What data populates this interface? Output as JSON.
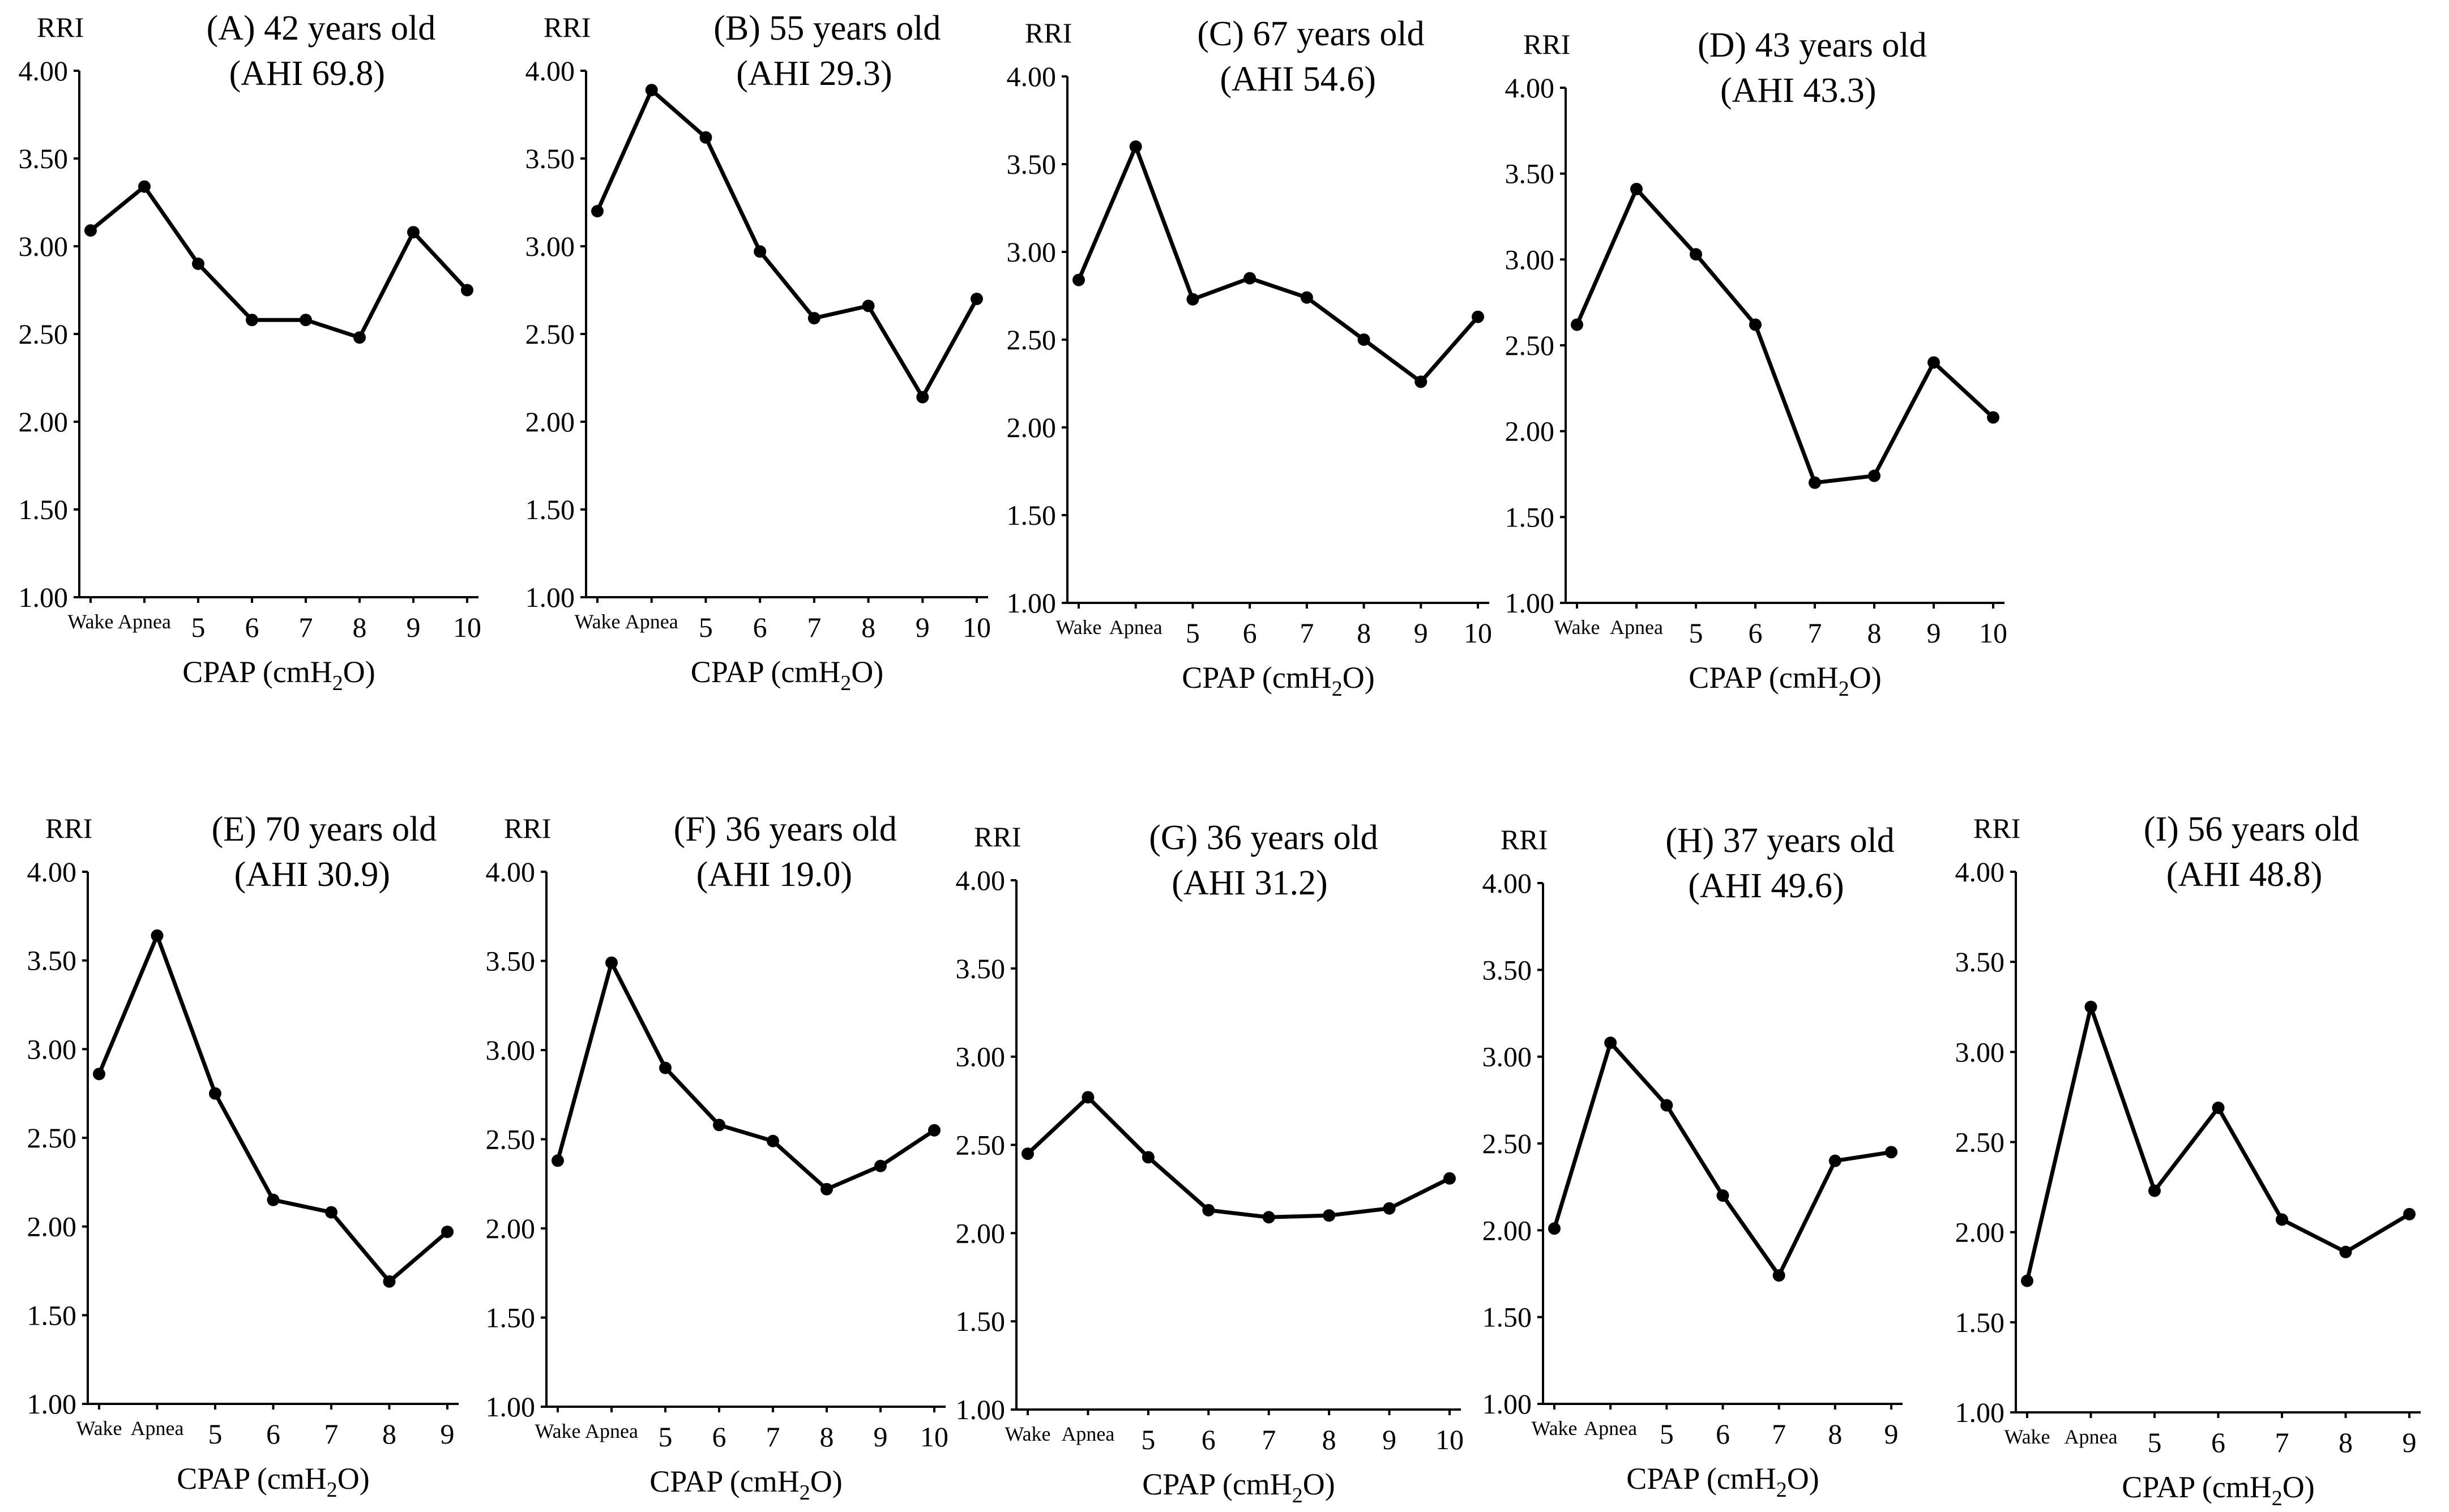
{
  "chart_data": [
    {
      "type": "line",
      "panel": "A",
      "title": "(A) 42 years old",
      "subtitle": "(AHI 69.8)",
      "ylabel": "RRI",
      "xlabel": "CPAP (cmH2O)",
      "ylim": [
        1,
        4
      ],
      "yticks": [
        "1.00",
        "1.50",
        "2.00",
        "2.50",
        "3.00",
        "3.50",
        "4.00"
      ],
      "categories": [
        "Wake",
        "Apnea",
        "5",
        "6",
        "7",
        "8",
        "9",
        "10"
      ],
      "values": [
        3.09,
        3.34,
        2.9,
        2.58,
        2.58,
        2.48,
        3.08,
        2.75
      ]
    },
    {
      "type": "line",
      "panel": "B",
      "title": "(B) 55 years old",
      "subtitle": "(AHI 29.3)",
      "ylabel": "RRI",
      "xlabel": "CPAP (cmH2O)",
      "ylim": [
        1,
        4
      ],
      "yticks": [
        "1.00",
        "1.50",
        "2.00",
        "2.50",
        "3.00",
        "3.50",
        "4.00"
      ],
      "categories": [
        "Wake",
        "Apnea",
        "5",
        "6",
        "7",
        "8",
        "9",
        "10"
      ],
      "values": [
        3.2,
        3.89,
        3.62,
        2.97,
        2.59,
        2.66,
        2.14,
        2.7
      ]
    },
    {
      "type": "line",
      "panel": "C",
      "title": "(C) 67 years old",
      "subtitle": "(AHI 54.6)",
      "ylabel": "RRI",
      "xlabel": "CPAP (cmH2O)",
      "ylim": [
        1,
        4
      ],
      "yticks": [
        "1.00",
        "1.50",
        "2.00",
        "2.50",
        "3.00",
        "3.50",
        "4.00"
      ],
      "categories": [
        "Wake",
        "Apnea",
        "5",
        "6",
        "7",
        "8",
        "9",
        "10"
      ],
      "values": [
        2.84,
        3.6,
        2.73,
        2.85,
        2.74,
        2.5,
        2.26,
        2.63
      ]
    },
    {
      "type": "line",
      "panel": "D",
      "title": "(D) 43 years old",
      "subtitle": "(AHI 43.3)",
      "ylabel": "RRI",
      "xlabel": "CPAP (cmH2O)",
      "ylim": [
        1,
        4
      ],
      "yticks": [
        "1.00",
        "1.50",
        "2.00",
        "2.50",
        "3.00",
        "3.50",
        "4.00"
      ],
      "categories": [
        "Wake",
        "Apnea",
        "5",
        "6",
        "7",
        "8",
        "9",
        "10"
      ],
      "values": [
        2.62,
        3.41,
        3.03,
        2.62,
        1.7,
        1.74,
        2.4,
        2.08
      ]
    },
    {
      "type": "line",
      "panel": "E",
      "title": "(E) 70 years old",
      "subtitle": "(AHI 30.9)",
      "ylabel": "RRI",
      "xlabel": "CPAP (cmH2O)",
      "ylim": [
        1,
        4
      ],
      "yticks": [
        "1.00",
        "1.50",
        "2.00",
        "2.50",
        "3.00",
        "3.50",
        "4.00"
      ],
      "categories": [
        "Wake",
        "Apnea",
        "5",
        "6",
        "7",
        "8",
        "9"
      ],
      "values": [
        2.86,
        3.64,
        2.75,
        2.15,
        2.08,
        1.69,
        1.97
      ]
    },
    {
      "type": "line",
      "panel": "F",
      "title": "(F) 36 years old",
      "subtitle": "(AHI 19.0)",
      "ylabel": "RRI",
      "xlabel": "CPAP (cmH2O)",
      "ylim": [
        1,
        4
      ],
      "yticks": [
        "1.00",
        "1.50",
        "2.00",
        "2.50",
        "3.00",
        "3.50",
        "4.00"
      ],
      "categories": [
        "Wake",
        "Apnea",
        "5",
        "6",
        "7",
        "8",
        "9",
        "10"
      ],
      "values": [
        2.38,
        3.49,
        2.9,
        2.58,
        2.49,
        2.22,
        2.35,
        2.55
      ]
    },
    {
      "type": "line",
      "panel": "G",
      "title": "(G) 36 years old",
      "subtitle": "(AHI 31.2)",
      "ylabel": "RRI",
      "xlabel": "CPAP (cmH2O)",
      "ylim": [
        1,
        4
      ],
      "yticks": [
        "1.00",
        "1.50",
        "2.00",
        "2.50",
        "3.00",
        "3.50",
        "4.00"
      ],
      "categories": [
        "Wake",
        "Apnea",
        "5",
        "6",
        "7",
        "8",
        "9",
        "10"
      ],
      "values": [
        2.45,
        2.77,
        2.43,
        2.13,
        2.09,
        2.1,
        2.14,
        2.31
      ]
    },
    {
      "type": "line",
      "panel": "H",
      "title": "(H) 37 years old",
      "subtitle": "(AHI 49.6)",
      "ylabel": "RRI",
      "xlabel": "CPAP (cmH2O)",
      "ylim": [
        1,
        4
      ],
      "yticks": [
        "1.00",
        "1.50",
        "2.00",
        "2.50",
        "3.00",
        "3.50",
        "4.00"
      ],
      "categories": [
        "Wake",
        "Apnea",
        "5",
        "6",
        "7",
        "8",
        "9"
      ],
      "values": [
        2.01,
        3.08,
        2.72,
        2.2,
        1.74,
        2.4,
        2.45
      ]
    },
    {
      "type": "line",
      "panel": "I",
      "title": "(I) 56 years old",
      "subtitle": "(AHI 48.8)",
      "ylabel": "RRI",
      "xlabel": "CPAP (cmH2O)",
      "ylim": [
        1,
        4
      ],
      "yticks": [
        "1.00",
        "1.50",
        "2.00",
        "2.50",
        "3.00",
        "3.50",
        "4.00"
      ],
      "categories": [
        "Wake",
        "Apnea",
        "5",
        "6",
        "7",
        "8",
        "9"
      ],
      "values": [
        1.73,
        3.25,
        2.23,
        2.69,
        2.07,
        1.89,
        2.1
      ]
    }
  ]
}
